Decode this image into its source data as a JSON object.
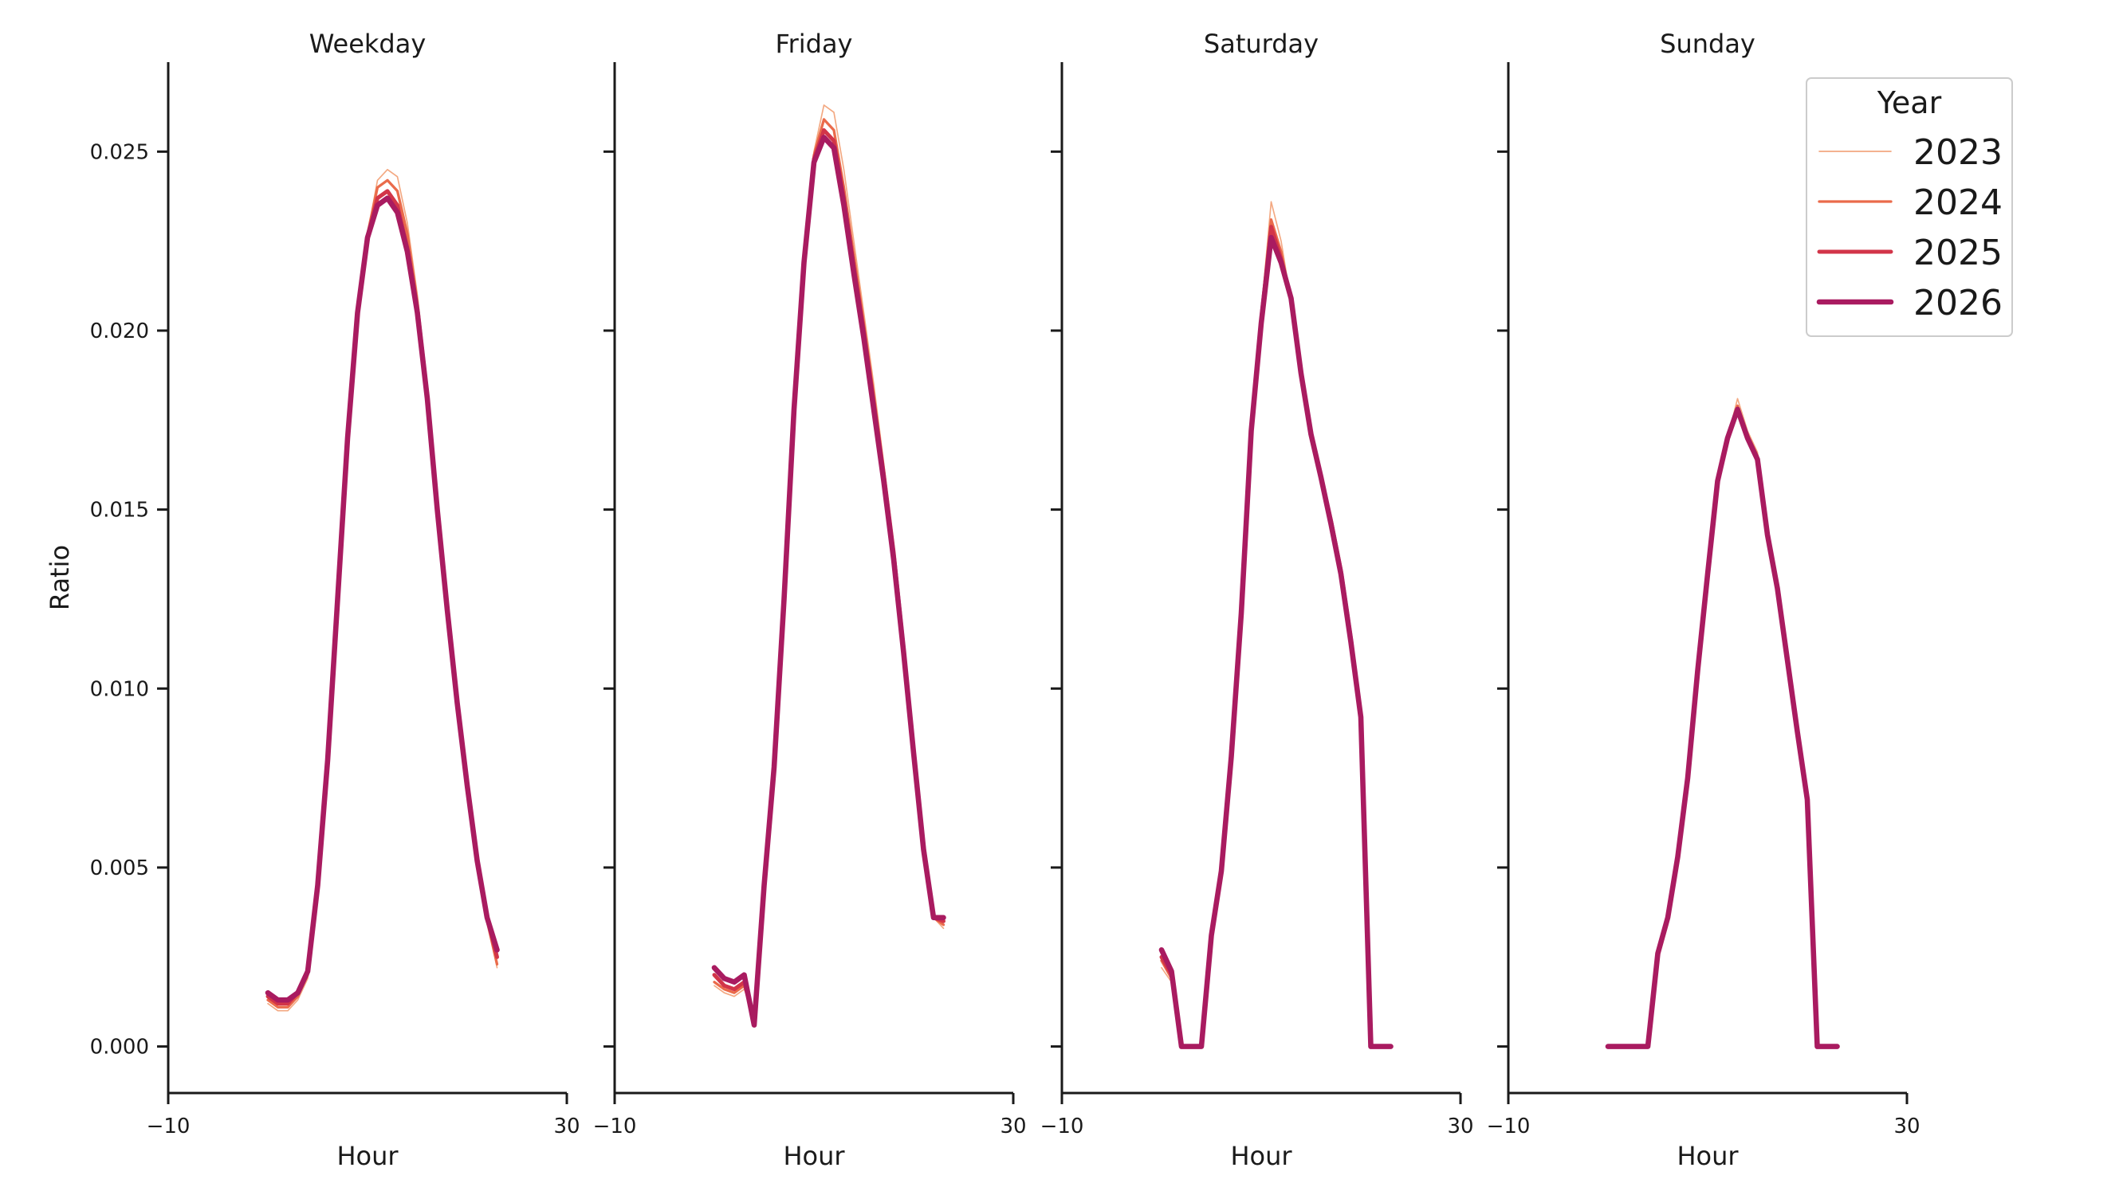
{
  "chart_data": {
    "type": "line",
    "ylabel": "Ratio",
    "xlabel": "Hour",
    "xlim": [
      -10,
      30
    ],
    "ylim": [
      -0.0013,
      0.0275
    ],
    "xticks": [
      -10,
      30
    ],
    "xtick_labels": [
      "−10",
      "30"
    ],
    "yticks": [
      0.0,
      0.005,
      0.01,
      0.015,
      0.02,
      0.025
    ],
    "ytick_labels": [
      "0.000",
      "0.005",
      "0.010",
      "0.015",
      "0.020",
      "0.025"
    ],
    "legend": {
      "title": "Year",
      "placement": "top-right",
      "entries": [
        {
          "label": "2023",
          "color": "#f3a881",
          "width": 1.5
        },
        {
          "label": "2024",
          "color": "#ea6b4b",
          "width": 3
        },
        {
          "label": "2025",
          "color": "#d23549",
          "width": 4.5
        },
        {
          "label": "2026",
          "color": "#a91b60",
          "width": 6
        }
      ]
    },
    "hours": [
      0,
      1,
      2,
      3,
      4,
      5,
      6,
      7,
      8,
      9,
      10,
      11,
      12,
      13,
      14,
      15,
      16,
      17,
      18,
      19,
      20,
      21,
      22,
      23
    ],
    "panels": [
      {
        "title": "Weekday",
        "series": [
          {
            "year": "2023",
            "values": [
              0.0012,
              0.001,
              0.001,
              0.0013,
              0.0019,
              0.0045,
              0.008,
              0.0125,
              0.017,
              0.0205,
              0.0227,
              0.0242,
              0.0245,
              0.0243,
              0.023,
              0.021,
              0.0185,
              0.015,
              0.0125,
              0.0097,
              0.0073,
              0.0051,
              0.0035,
              0.0022
            ]
          },
          {
            "year": "2024",
            "values": [
              0.0013,
              0.0011,
              0.0011,
              0.0014,
              0.002,
              0.0045,
              0.008,
              0.0125,
              0.017,
              0.0205,
              0.0227,
              0.024,
              0.0242,
              0.0239,
              0.0227,
              0.0208,
              0.0183,
              0.015,
              0.0124,
              0.0096,
              0.0072,
              0.0051,
              0.0035,
              0.0023
            ]
          },
          {
            "year": "2025",
            "values": [
              0.0014,
              0.0012,
              0.0012,
              0.0015,
              0.0021,
              0.0045,
              0.008,
              0.0125,
              0.017,
              0.0205,
              0.0226,
              0.0237,
              0.0239,
              0.0235,
              0.0223,
              0.0206,
              0.0182,
              0.015,
              0.0123,
              0.0096,
              0.0072,
              0.0052,
              0.0036,
              0.0025
            ]
          },
          {
            "year": "2026",
            "values": [
              0.0015,
              0.0013,
              0.0013,
              0.0015,
              0.0021,
              0.0045,
              0.008,
              0.0125,
              0.017,
              0.0205,
              0.0226,
              0.0235,
              0.0237,
              0.0233,
              0.0222,
              0.0205,
              0.0181,
              0.015,
              0.0122,
              0.0096,
              0.0073,
              0.0052,
              0.0036,
              0.0027
            ]
          }
        ]
      },
      {
        "title": "Friday",
        "series": [
          {
            "year": "2023",
            "values": [
              0.0017,
              0.0015,
              0.0014,
              0.0016,
              0.001,
              0.0045,
              0.0078,
              0.0125,
              0.0178,
              0.022,
              0.025,
              0.0263,
              0.0261,
              0.0245,
              0.0225,
              0.0205,
              0.0185,
              0.0163,
              0.014,
              0.0113,
              0.0085,
              0.0058,
              0.0036,
              0.0033
            ]
          },
          {
            "year": "2024",
            "values": [
              0.0018,
              0.0016,
              0.0015,
              0.0017,
              0.0008,
              0.0045,
              0.0078,
              0.0125,
              0.0178,
              0.022,
              0.0249,
              0.0259,
              0.0256,
              0.024,
              0.0221,
              0.0202,
              0.0182,
              0.0161,
              0.0139,
              0.0112,
              0.0084,
              0.0057,
              0.0036,
              0.0034
            ]
          },
          {
            "year": "2025",
            "values": [
              0.002,
              0.0017,
              0.0016,
              0.0018,
              0.0007,
              0.0045,
              0.0078,
              0.0125,
              0.0178,
              0.0219,
              0.0248,
              0.0256,
              0.0253,
              0.0237,
              0.0218,
              0.02,
              0.018,
              0.016,
              0.0138,
              0.0111,
              0.0083,
              0.0056,
              0.0036,
              0.0035
            ]
          },
          {
            "year": "2026",
            "values": [
              0.0022,
              0.0019,
              0.0018,
              0.002,
              0.0006,
              0.0045,
              0.0078,
              0.0125,
              0.0178,
              0.0219,
              0.0247,
              0.0254,
              0.0251,
              0.0235,
              0.0216,
              0.0198,
              0.0178,
              0.0158,
              0.0136,
              0.011,
              0.0082,
              0.0055,
              0.0036,
              0.0036
            ]
          }
        ]
      },
      {
        "title": "Saturday",
        "series": [
          {
            "year": "2023",
            "values": [
              0.0022,
              0.0018,
              0.0,
              0.0,
              0.0,
              0.003,
              0.005,
              0.008,
              0.012,
              0.0172,
              0.0205,
              0.0236,
              0.0225,
              0.0208,
              0.0188,
              0.0172,
              0.0161,
              0.0148,
              0.0134,
              0.0115,
              0.0093,
              0.0,
              0.0,
              0.0
            ]
          },
          {
            "year": "2024",
            "values": [
              0.0024,
              0.0019,
              0.0,
              0.0,
              0.0,
              0.0031,
              0.0049,
              0.0081,
              0.0121,
              0.0172,
              0.0204,
              0.0231,
              0.0222,
              0.0208,
              0.0188,
              0.0171,
              0.016,
              0.0147,
              0.0133,
              0.0114,
              0.0092,
              0.0,
              0.0,
              0.0
            ]
          },
          {
            "year": "2025",
            "values": [
              0.0025,
              0.002,
              0.0,
              0.0,
              0.0,
              0.0031,
              0.0049,
              0.0081,
              0.0121,
              0.0172,
              0.0203,
              0.0229,
              0.022,
              0.0209,
              0.0188,
              0.0171,
              0.0159,
              0.0147,
              0.0133,
              0.0114,
              0.0092,
              0.0,
              0.0,
              0.0
            ]
          },
          {
            "year": "2026",
            "values": [
              0.0027,
              0.0021,
              0.0,
              0.0,
              0.0,
              0.0031,
              0.0049,
              0.0081,
              0.0121,
              0.0172,
              0.0202,
              0.0226,
              0.0219,
              0.0209,
              0.0188,
              0.0171,
              0.0159,
              0.0146,
              0.0132,
              0.0113,
              0.0092,
              0.0,
              0.0,
              0.0
            ]
          }
        ]
      },
      {
        "title": "Sunday",
        "series": [
          {
            "year": "2023",
            "values": [
              0.0,
              0.0,
              0.0,
              0.0,
              0.0,
              0.0024,
              0.0034,
              0.0052,
              0.0075,
              0.0105,
              0.0132,
              0.0157,
              0.017,
              0.0181,
              0.0172,
              0.0166,
              0.0143,
              0.0128,
              0.0108,
              0.0088,
              0.0069,
              0.0,
              0.0,
              0.0
            ]
          },
          {
            "year": "2024",
            "values": [
              0.0,
              0.0,
              0.0,
              0.0,
              0.0,
              0.0025,
              0.0035,
              0.0052,
              0.0075,
              0.0105,
              0.0132,
              0.0158,
              0.017,
              0.0179,
              0.0171,
              0.0165,
              0.0143,
              0.0128,
              0.0108,
              0.0088,
              0.0069,
              0.0,
              0.0,
              0.0
            ]
          },
          {
            "year": "2025",
            "values": [
              0.0,
              0.0,
              0.0,
              0.0,
              0.0,
              0.0026,
              0.0036,
              0.0053,
              0.0075,
              0.0105,
              0.0132,
              0.0158,
              0.017,
              0.0178,
              0.017,
              0.0164,
              0.0143,
              0.0128,
              0.0108,
              0.0088,
              0.0069,
              0.0,
              0.0,
              0.0
            ]
          },
          {
            "year": "2026",
            "values": [
              0.0,
              0.0,
              0.0,
              0.0,
              0.0,
              0.0026,
              0.0036,
              0.0053,
              0.0075,
              0.0105,
              0.0132,
              0.0158,
              0.017,
              0.0178,
              0.017,
              0.0164,
              0.0143,
              0.0128,
              0.0108,
              0.0088,
              0.0069,
              0.0,
              0.0,
              0.0
            ]
          }
        ]
      }
    ]
  }
}
